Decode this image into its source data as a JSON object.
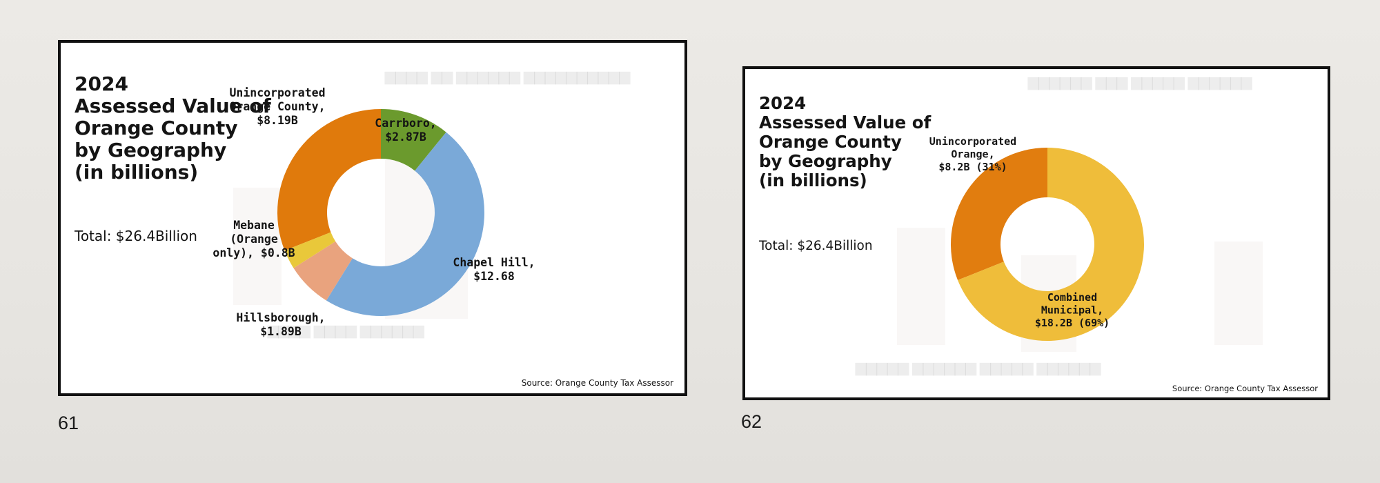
{
  "page_numbers": [
    "61",
    "62"
  ],
  "chart_data": [
    {
      "type": "pie",
      "variant": "donut",
      "title": [
        "2024",
        "Assessed Value of",
        "Orange County",
        "by Geography",
        "(in billions)"
      ],
      "total_label": "Total: $26.4Billion",
      "source": "Source: Orange County Tax Assessor",
      "slices": [
        {
          "label": [
            "Unincorporated",
            "Orange County,",
            "$8.19B"
          ],
          "value": 8.19,
          "color": "#e07a0c"
        },
        {
          "label": [
            "Carrboro,",
            "$2.87B"
          ],
          "value": 2.87,
          "color": "#6b9a2d"
        },
        {
          "label": [
            "Chapel Hill,",
            "$12.68"
          ],
          "value": 12.68,
          "color": "#7aa9d8"
        },
        {
          "label": [
            "Hillsborough,",
            "$1.89B"
          ],
          "value": 1.89,
          "color": "#e9a37e"
        },
        {
          "label": [
            "Mebane",
            "(Orange",
            "only), $0.8B"
          ],
          "value": 0.8,
          "color": "#e9c83a"
        }
      ]
    },
    {
      "type": "pie",
      "variant": "donut",
      "title": [
        "2024",
        "Assessed Value of",
        "Orange County",
        "by Geography",
        "(in billions)"
      ],
      "total_label": "Total: $26.4Billion",
      "source": "Source: Orange County Tax Assessor",
      "slices": [
        {
          "label": [
            "Unincorporated",
            "Orange,",
            "$8.2B (31%)"
          ],
          "value": 8.2,
          "color": "#e17d0f"
        },
        {
          "label": [
            "Combined",
            "Municipal,",
            "$18.2B (69%)"
          ],
          "value": 18.2,
          "color": "#efbd3a"
        }
      ]
    }
  ]
}
